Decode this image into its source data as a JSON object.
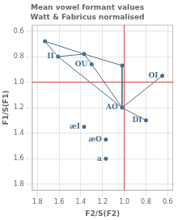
{
  "chart_data": {
    "type": "scatter",
    "title": "Mean vowel formant values",
    "subtitle": "Watt & Fabricus normalised",
    "xlabel": "F2/S(F2)",
    "ylabel": "F1/S(F1)",
    "xlim": [
      1.85,
      0.55
    ],
    "ylim": [
      1.85,
      0.55
    ],
    "xticks": [
      1.8,
      1.6,
      1.4,
      1.2,
      {
        "value": 1.0,
        "label": "1.0"
      },
      0.8,
      0.6
    ],
    "yticks": [
      0.6,
      0.8,
      {
        "value": 1.0,
        "label": "1.0"
      },
      1.2,
      1.4,
      1.6,
      1.8
    ],
    "grid": true,
    "series": [
      {
        "type": "line",
        "color": "#4a6e8a",
        "segments": [
          [
            1.73,
            0.68,
            1.61,
            0.8
          ],
          [
            1.73,
            0.68,
            1.37,
            0.78
          ],
          [
            1.61,
            0.8,
            1.37,
            0.78
          ],
          [
            1.37,
            0.78,
            1.3,
            0.86
          ],
          [
            1.37,
            0.78,
            1.02,
            0.87
          ],
          [
            1.3,
            0.86,
            1.02,
            1.2
          ],
          [
            1.61,
            0.8,
            1.02,
            1.2
          ],
          [
            1.02,
            0.87,
            1.02,
            1.2
          ],
          [
            1.02,
            1.2,
            0.65,
            0.95
          ],
          [
            1.02,
            1.2,
            0.8,
            1.3
          ]
        ]
      },
      {
        "type": "scatter",
        "color": "#4a6e8a",
        "marker": "circle",
        "x": [
          1.73,
          1.37,
          1.02,
          1.61,
          1.3,
          0.65,
          1.02,
          1.37,
          1.17,
          1.17,
          0.8
        ],
        "values": [
          0.68,
          0.78,
          0.87,
          0.8,
          0.86,
          0.95,
          1.2,
          1.35,
          1.45,
          1.6,
          1.3
        ]
      }
    ],
    "reference_lines": [
      {
        "axis": "x",
        "value": 1.0,
        "color": "#d94040"
      },
      {
        "axis": "y",
        "value": 1.0,
        "color": "#d94040"
      }
    ],
    "annotations": [
      {
        "x": 1.61,
        "y": 0.8,
        "text": "II",
        "color": "#4a6e8a"
      },
      {
        "x": 1.3,
        "y": 0.86,
        "text": "OU",
        "color": "#4a6e8a"
      },
      {
        "x": 0.65,
        "y": 0.95,
        "text": "OI",
        "color": "#4a6e8a"
      },
      {
        "x": 1.02,
        "y": 1.2,
        "text": "AO",
        "color": "#4a6e8a"
      },
      {
        "x": 1.37,
        "y": 1.35,
        "text": "æI",
        "color": "#4a6e8a"
      },
      {
        "x": 1.17,
        "y": 1.45,
        "text": "æO",
        "color": "#4a6e8a"
      },
      {
        "x": 1.17,
        "y": 1.6,
        "text": "a",
        "color": "#4a6e8a"
      },
      {
        "x": 0.8,
        "y": 1.3,
        "text": "DI",
        "color": "#4a6e8a"
      }
    ]
  }
}
